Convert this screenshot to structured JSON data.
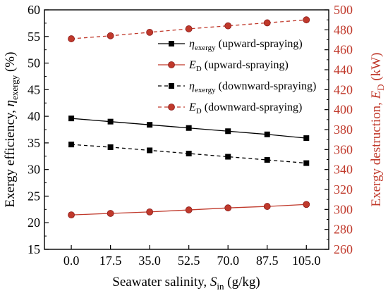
{
  "chart_data": {
    "type": "line",
    "x": [
      0.0,
      17.5,
      35.0,
      52.5,
      70.0,
      87.5,
      105.0
    ],
    "x_tick_labels": [
      "0.0",
      "17.5",
      "35.0",
      "52.5",
      "70.0",
      "87.5",
      "105.0"
    ],
    "xlim": [
      -12,
      115
    ],
    "ylim_left": [
      15,
      60
    ],
    "y_left_ticks": [
      "15",
      "20",
      "25",
      "30",
      "35",
      "40",
      "45",
      "50",
      "55",
      "60"
    ],
    "ylim_right": [
      260,
      500
    ],
    "y_right_ticks": [
      "260",
      "280",
      "300",
      "320",
      "340",
      "360",
      "380",
      "400",
      "420",
      "440",
      "460",
      "480",
      "500"
    ],
    "xlabel": {
      "main": "Seawater salinity, ",
      "var": "S",
      "sub": "in",
      "unit": " (g/kg)"
    },
    "ylabel_left": {
      "main": "Exergy efficiency, ",
      "var": "η",
      "sub": "exergy",
      "unit": " (%)"
    },
    "ylabel_right": {
      "main": "Exergy destruction, ",
      "var": "E",
      "sub": "D",
      "unit": " (kW)"
    },
    "series": [
      {
        "var": "η",
        "sub": "exergy",
        "rest": " (upward-spraying)",
        "axis": "left",
        "line": "solid",
        "marker": "square",
        "color": "#000000",
        "values": [
          39.6,
          39.0,
          38.4,
          37.8,
          37.2,
          36.6,
          35.9
        ]
      },
      {
        "var": "E",
        "sub": "D",
        "rest": " (upward-spraying)",
        "axis": "right",
        "line": "solid",
        "marker": "circle",
        "color": "#c0392b",
        "values": [
          294.5,
          296.0,
          297.5,
          299.5,
          301.5,
          303.0,
          305.0
        ]
      },
      {
        "var": "η",
        "sub": "exergy",
        "rest": " (downward-spraying)",
        "axis": "left",
        "line": "dashed",
        "marker": "square",
        "color": "#000000",
        "values": [
          34.7,
          34.2,
          33.6,
          33.0,
          32.4,
          31.8,
          31.2
        ]
      },
      {
        "var": "E",
        "sub": "D",
        "rest": " (downward-spraying)",
        "axis": "right",
        "line": "dashed",
        "marker": "circle",
        "color": "#c0392b",
        "values": [
          471.0,
          474.0,
          477.5,
          481.0,
          484.0,
          487.0,
          490.0
        ]
      }
    ],
    "legend_position": "upper-right",
    "grid": false,
    "colors": {
      "left_axis": "#000000",
      "right_axis": "#c0392b",
      "ed_marker_edge": "#8b1a1a"
    }
  }
}
